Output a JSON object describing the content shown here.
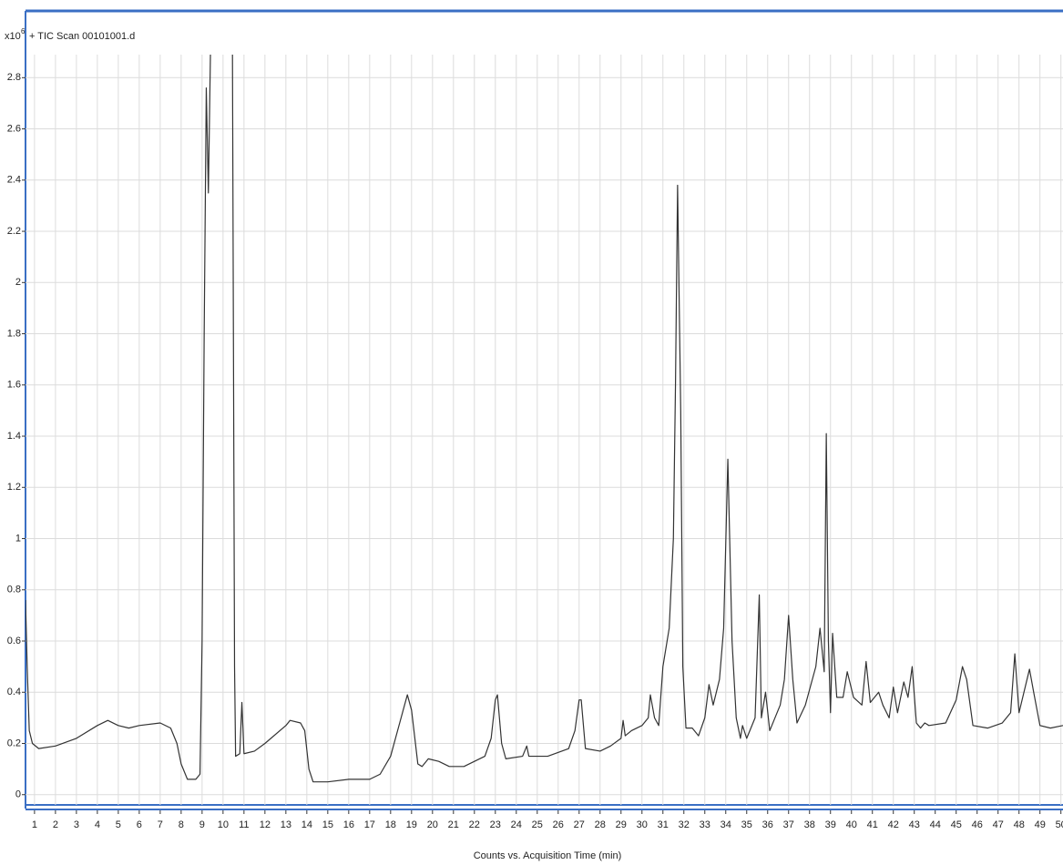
{
  "chart_data": {
    "type": "line",
    "title": "+ TIC Scan 00101001.d",
    "y_scale_label": {
      "base": "x10",
      "exponent": "6"
    },
    "x_label": "Counts vs. Acquisition Time (min)",
    "color": "#333333",
    "grid": true,
    "xlim": [
      0.57,
      50.1
    ],
    "ylim": [
      -0.04,
      2.89
    ],
    "xticks": [
      1,
      2,
      3,
      4,
      5,
      6,
      7,
      8,
      9,
      10,
      11,
      12,
      13,
      14,
      15,
      16,
      17,
      18,
      19,
      20,
      21,
      22,
      23,
      24,
      25,
      26,
      27,
      28,
      29,
      30,
      31,
      32,
      33,
      34,
      35,
      36,
      37,
      38,
      39,
      40,
      41,
      42,
      43,
      44,
      45,
      46,
      47,
      48,
      49,
      50
    ],
    "yticks": [
      0,
      0.2,
      0.4,
      0.6,
      0.8,
      1,
      1.2,
      1.4,
      1.6,
      1.8,
      2,
      2.2,
      2.4,
      2.6,
      2.8
    ],
    "x": [
      0.57,
      0.65,
      0.75,
      0.9,
      1.2,
      2,
      3,
      4,
      4.5,
      5,
      5.5,
      6,
      7,
      7.5,
      7.8,
      8,
      8.3,
      8.7,
      8.9,
      9.0,
      9.1,
      9.2,
      9.3,
      9.4,
      10.45,
      10.55,
      10.6,
      10.8,
      10.9,
      11.0,
      11.5,
      12,
      13,
      13.2,
      13.7,
      13.9,
      14.1,
      14.3,
      15,
      16,
      17,
      17.5,
      18,
      18.5,
      18.8,
      19.0,
      19.3,
      19.5,
      19.8,
      20.3,
      20.8,
      21.5,
      22,
      22.5,
      22.8,
      23.0,
      23.1,
      23.3,
      23.5,
      24.3,
      24.5,
      24.6,
      25.5,
      26.5,
      26.8,
      27.0,
      27.1,
      27.3,
      28,
      28.5,
      29.0,
      29.1,
      29.2,
      29.5,
      30,
      30.3,
      30.4,
      30.6,
      30.8,
      31.0,
      31.3,
      31.5,
      31.6,
      31.7,
      31.85,
      31.95,
      32.1,
      32.4,
      32.7,
      33.0,
      33.2,
      33.4,
      33.7,
      33.9,
      34.1,
      34.3,
      34.5,
      34.7,
      34.8,
      35.0,
      35.4,
      35.6,
      35.7,
      35.9,
      36.1,
      36.6,
      36.8,
      37.0,
      37.2,
      37.4,
      37.8,
      38.3,
      38.5,
      38.7,
      38.8,
      38.9,
      39.0,
      39.1,
      39.3,
      39.6,
      39.8,
      40.1,
      40.5,
      40.7,
      40.9,
      41.3,
      41.5,
      41.8,
      42.0,
      42.2,
      42.5,
      42.7,
      42.9,
      43.1,
      43.3,
      43.5,
      43.7,
      44.5,
      45.0,
      45.3,
      45.5,
      45.8,
      46.5,
      47.2,
      47.6,
      47.8,
      48.0,
      48.5,
      48.7,
      49.0,
      49.5,
      50.1
    ],
    "values": [
      0.76,
      0.5,
      0.25,
      0.2,
      0.18,
      0.19,
      0.22,
      0.27,
      0.29,
      0.27,
      0.26,
      0.27,
      0.28,
      0.26,
      0.2,
      0.12,
      0.06,
      0.06,
      0.08,
      0.6,
      1.8,
      2.76,
      2.35,
      2.9,
      2.9,
      0.5,
      0.15,
      0.16,
      0.36,
      0.16,
      0.17,
      0.2,
      0.27,
      0.29,
      0.28,
      0.25,
      0.1,
      0.05,
      0.05,
      0.06,
      0.06,
      0.08,
      0.15,
      0.3,
      0.39,
      0.33,
      0.12,
      0.11,
      0.14,
      0.13,
      0.11,
      0.11,
      0.13,
      0.15,
      0.22,
      0.37,
      0.39,
      0.2,
      0.14,
      0.15,
      0.19,
      0.15,
      0.15,
      0.18,
      0.25,
      0.37,
      0.37,
      0.18,
      0.17,
      0.19,
      0.22,
      0.29,
      0.23,
      0.25,
      0.27,
      0.3,
      0.39,
      0.3,
      0.27,
      0.5,
      0.65,
      1.0,
      1.6,
      2.38,
      1.5,
      0.5,
      0.26,
      0.26,
      0.23,
      0.3,
      0.43,
      0.35,
      0.45,
      0.65,
      1.31,
      0.6,
      0.3,
      0.22,
      0.27,
      0.22,
      0.3,
      0.78,
      0.3,
      0.4,
      0.25,
      0.35,
      0.45,
      0.7,
      0.45,
      0.28,
      0.35,
      0.5,
      0.65,
      0.48,
      1.41,
      0.6,
      0.32,
      0.63,
      0.38,
      0.38,
      0.48,
      0.38,
      0.35,
      0.52,
      0.36,
      0.4,
      0.35,
      0.3,
      0.42,
      0.32,
      0.44,
      0.38,
      0.5,
      0.28,
      0.26,
      0.28,
      0.27,
      0.28,
      0.37,
      0.5,
      0.45,
      0.27,
      0.26,
      0.28,
      0.32,
      0.55,
      0.32,
      0.49,
      0.4,
      0.27,
      0.26,
      0.27
    ]
  }
}
